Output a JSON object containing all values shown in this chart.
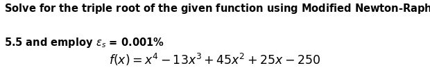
{
  "line1": "Solve for the triple root of the given function using Modified Newton-Raphson. Use $x_o$ =",
  "line2": "5.5 and employ $\\varepsilon_s$ = 0.001%",
  "formula": "$f(x) = x^4 - 13x^3 + 45x^2 + 25x - 250$",
  "bg_color": "#ffffff",
  "text_color": "#000000",
  "fontsize_body": 10.5,
  "fontsize_formula": 12.5,
  "fig_width": 6.2,
  "fig_height": 1.08,
  "dpi": 100
}
